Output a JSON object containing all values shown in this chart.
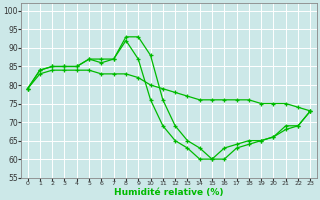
{
  "xlabel": "Humidité relative (%)",
  "xlim": [
    -0.5,
    23.5
  ],
  "ylim": [
    55,
    102
  ],
  "yticks": [
    55,
    60,
    65,
    70,
    75,
    80,
    85,
    90,
    95,
    100
  ],
  "xticks": [
    0,
    1,
    2,
    3,
    4,
    5,
    6,
    7,
    8,
    9,
    10,
    11,
    12,
    13,
    14,
    15,
    16,
    17,
    18,
    19,
    20,
    21,
    22,
    23
  ],
  "bg_color": "#cce8e8",
  "grid_color": "#ffffff",
  "line_color": "#00bb00",
  "line1_x": [
    0,
    1,
    2,
    3,
    4,
    5,
    6,
    7,
    8,
    9,
    10,
    11,
    12,
    13,
    14,
    15,
    16,
    17,
    18,
    19,
    20,
    21,
    22,
    23
  ],
  "line1_y": [
    79,
    84,
    85,
    85,
    85,
    87,
    87,
    87,
    93,
    93,
    88,
    76,
    69,
    65,
    63,
    60,
    60,
    63,
    64,
    65,
    66,
    69,
    69,
    73
  ],
  "line2_x": [
    0,
    1,
    2,
    3,
    4,
    5,
    6,
    7,
    8,
    9,
    10,
    11,
    12,
    13,
    14,
    15,
    16,
    17,
    18,
    19,
    20,
    21,
    22,
    23
  ],
  "line2_y": [
    79,
    83,
    84,
    84,
    84,
    84,
    83,
    83,
    83,
    82,
    80,
    79,
    78,
    77,
    76,
    76,
    76,
    76,
    76,
    75,
    75,
    75,
    74,
    73
  ],
  "line3_x": [
    0,
    1,
    2,
    3,
    4,
    5,
    6,
    7,
    8,
    9,
    10,
    11,
    12,
    13,
    14,
    15,
    16,
    17,
    18,
    19,
    20,
    21,
    22,
    23
  ],
  "line3_y": [
    79,
    84,
    85,
    85,
    85,
    87,
    86,
    87,
    92,
    87,
    76,
    69,
    65,
    63,
    60,
    60,
    63,
    64,
    65,
    65,
    66,
    68,
    69,
    73
  ]
}
